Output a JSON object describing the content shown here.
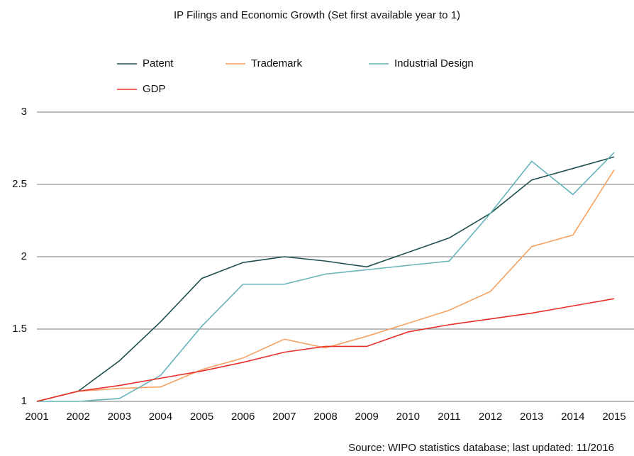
{
  "chart_data": {
    "type": "line",
    "title": "IP Filings and Economic Growth (Set first available year to 1)",
    "source": "Source: WIPO statistics database; last updated: 11/2016",
    "categories": [
      "2001",
      "2002",
      "2003",
      "2004",
      "2005",
      "2006",
      "2007",
      "2008",
      "2009",
      "2010",
      "2011",
      "2012",
      "2013",
      "2014",
      "2015"
    ],
    "series": [
      {
        "name": "Patent",
        "color": "#1f4f4f",
        "values": [
          1,
          1.07,
          1.28,
          1.55,
          1.85,
          1.96,
          2.0,
          1.97,
          1.93,
          2.03,
          2.13,
          2.3,
          2.53,
          2.61,
          2.69
        ]
      },
      {
        "name": "Trademark",
        "color": "#f5a162",
        "values": [
          1,
          1.07,
          1.09,
          1.1,
          1.22,
          1.3,
          1.43,
          1.37,
          1.45,
          1.54,
          1.63,
          1.76,
          2.07,
          2.15,
          2.6
        ]
      },
      {
        "name": "Industrial Design",
        "color": "#66b3b9",
        "values": [
          1,
          1.0,
          1.02,
          1.18,
          1.52,
          1.81,
          1.81,
          1.88,
          1.91,
          1.94,
          1.97,
          2.3,
          2.66,
          2.43,
          2.72
        ]
      },
      {
        "name": "GDP",
        "color": "#e8302a",
        "values": [
          1,
          1.07,
          1.11,
          1.16,
          1.21,
          1.27,
          1.34,
          1.38,
          1.38,
          1.48,
          1.53,
          1.57,
          1.61,
          1.66,
          1.71
        ]
      }
    ],
    "ylim": [
      1,
      3
    ],
    "yticks": [
      1,
      1.5,
      2,
      2.5,
      3
    ],
    "grid": true
  }
}
